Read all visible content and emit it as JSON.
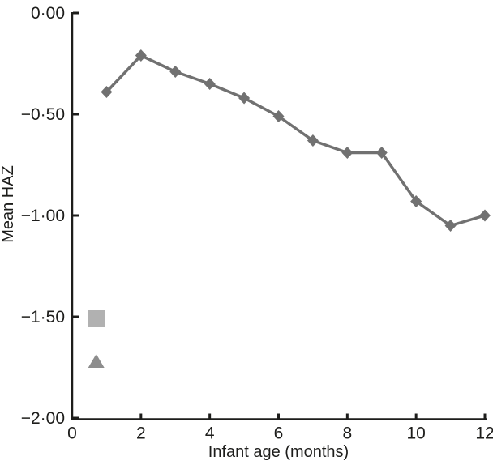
{
  "figure": {
    "background": "#ffffff"
  },
  "chart_data": {
    "type": "line",
    "title": "",
    "xlabel": "Infant age (months)",
    "ylabel": "Mean HAZ",
    "xlim": [
      0,
      12
    ],
    "ylim": [
      -2.0,
      0.0
    ],
    "grid": false,
    "legend": "none",
    "axis_color": "#1d1d1b",
    "x_ticks": [
      0,
      2,
      4,
      6,
      8,
      10,
      12
    ],
    "x_tick_labels": [
      "0",
      "2",
      "4",
      "6",
      "8",
      "10",
      "12"
    ],
    "y_ticks": [
      0.0,
      -0.5,
      -1.0,
      -1.5,
      -2.0
    ],
    "y_tick_labels": [
      "0·00",
      "−0·50",
      "−1·00",
      "−1·50",
      "−2·00"
    ],
    "series": [
      {
        "name": "mean-haz-by-month",
        "marker": "diamond",
        "line": true,
        "color": "#717171",
        "x": [
          1,
          2,
          3,
          4,
          5,
          6,
          7,
          8,
          9,
          10,
          11,
          12
        ],
        "y": [
          -0.39,
          -0.21,
          -0.29,
          -0.35,
          -0.42,
          -0.51,
          -0.63,
          -0.69,
          -0.69,
          -0.93,
          -1.05,
          -1.0
        ]
      },
      {
        "name": "reference-point-square",
        "marker": "square",
        "line": false,
        "color": "#b1b1b1",
        "x": [
          0.7
        ],
        "y": [
          -1.51
        ]
      },
      {
        "name": "reference-point-triangle",
        "marker": "triangle",
        "line": false,
        "color": "#8d8d8d",
        "x": [
          0.7
        ],
        "y": [
          -1.72
        ]
      }
    ]
  }
}
